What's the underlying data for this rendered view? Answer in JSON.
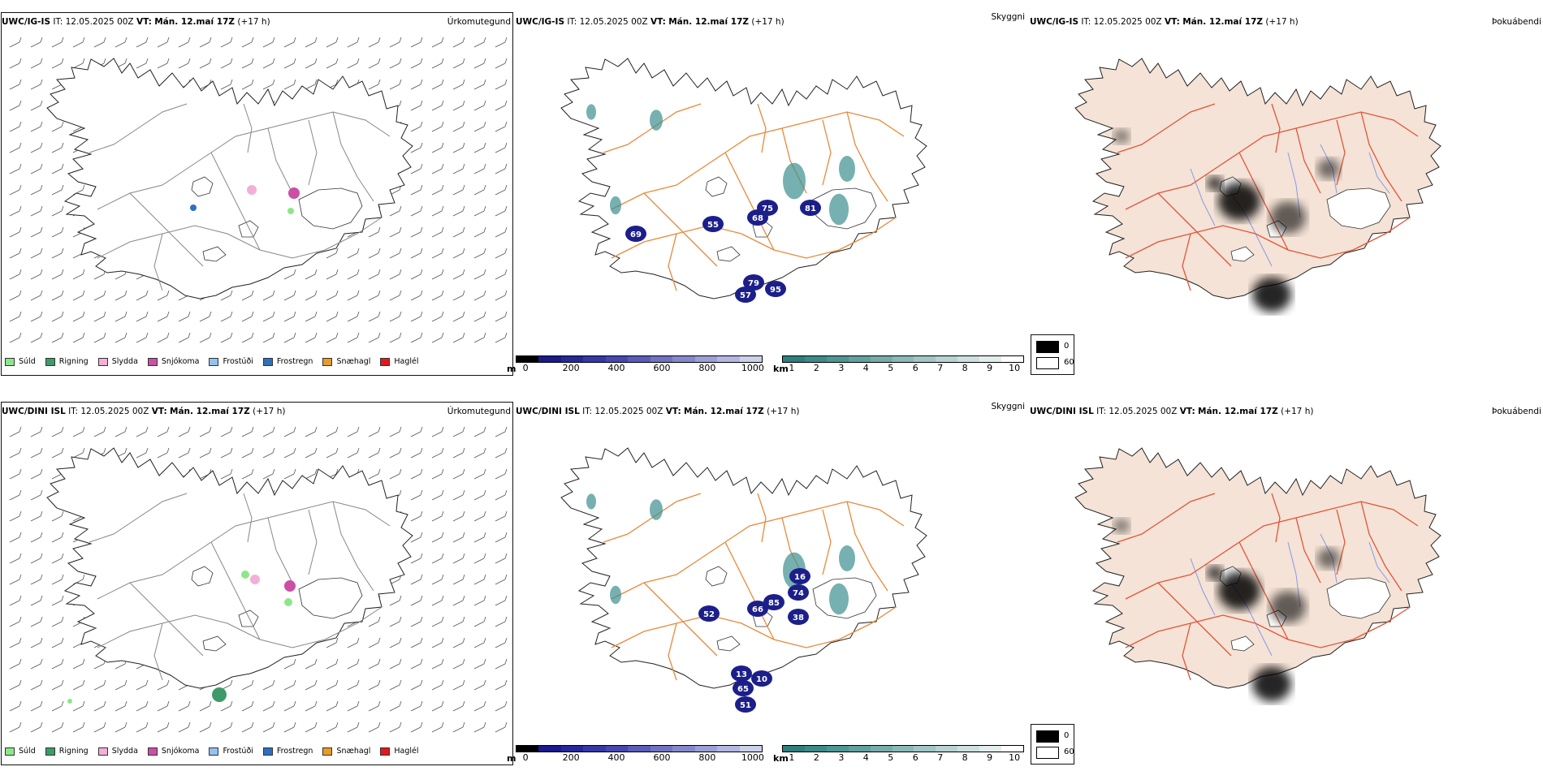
{
  "colors": {
    "land_fog": "#f4e3d6",
    "roads_vis": "#e8893a",
    "roads_fog": "#e2553a",
    "rivers": "#8b97e8",
    "low_cloud": "#1c1f8a",
    "vis_teal": "#3d8f8e"
  },
  "rows": [
    {
      "model": "UWC/IG-IS",
      "it_label": "IT:",
      "it_value": "12.05.2025 00Z",
      "vt_label": "VT:",
      "vt_value": "Mán. 12.maí 17Z",
      "lead": "(+17 h)",
      "labels": [
        "55",
        "75",
        "68",
        "81",
        "79",
        "95",
        "57",
        "69"
      ]
    },
    {
      "model": "UWC/DINI ISL",
      "it_label": "IT:",
      "it_value": "12.05.2025 00Z",
      "vt_label": "VT:",
      "vt_value": "Mán. 12.maí 17Z",
      "lead": "(+17 h)",
      "labels": [
        "52",
        "66",
        "85",
        "16",
        "74",
        "38",
        "13",
        "10",
        "65",
        "51"
      ]
    }
  ],
  "panels": {
    "precip_title": "Úrkomutegund",
    "vis_title": "Skyggni",
    "fog_title": "Þokuábendi"
  },
  "precip_legend": [
    {
      "label": "Súld",
      "color": "#8ee68a"
    },
    {
      "label": "Rigning",
      "color": "#3f9a6a"
    },
    {
      "label": "Slydda",
      "color": "#f3b0d6"
    },
    {
      "label": "Snjókoma",
      "color": "#cc4fa6"
    },
    {
      "label": "Frostúði",
      "color": "#93c2ee"
    },
    {
      "label": "Frostregn",
      "color": "#2f6fc0"
    },
    {
      "label": "Snæhagl",
      "color": "#e99a27"
    },
    {
      "label": "Haglél",
      "color": "#e0191c"
    }
  ],
  "cloud_scale": {
    "unit": "m",
    "ticks": [
      "0",
      "200",
      "400",
      "600",
      "800",
      "1000"
    ],
    "colors": [
      "#000000",
      "#1a1a8c",
      "#26289a",
      "#3538a6",
      "#4648b0",
      "#5a5db8",
      "#6f73c2",
      "#8589cc",
      "#9ca0d6",
      "#b4b7e0",
      "#cdd0ea"
    ]
  },
  "vis_scale": {
    "unit": "km",
    "ticks": [
      "1",
      "2",
      "3",
      "4",
      "5",
      "6",
      "7",
      "8",
      "9",
      "10"
    ],
    "colors": [
      "#2e7f7d",
      "#3e8a88",
      "#4f9593",
      "#62a19f",
      "#76adab",
      "#8bb9b8",
      "#a1c6c5",
      "#b7d3d2",
      "#cde0df",
      "#e3edec",
      "#ffffff"
    ]
  },
  "fog_legend": {
    "items": [
      {
        "label": "0",
        "color": "#000000"
      },
      {
        "label": "60",
        "color": "#ffffff"
      }
    ]
  }
}
